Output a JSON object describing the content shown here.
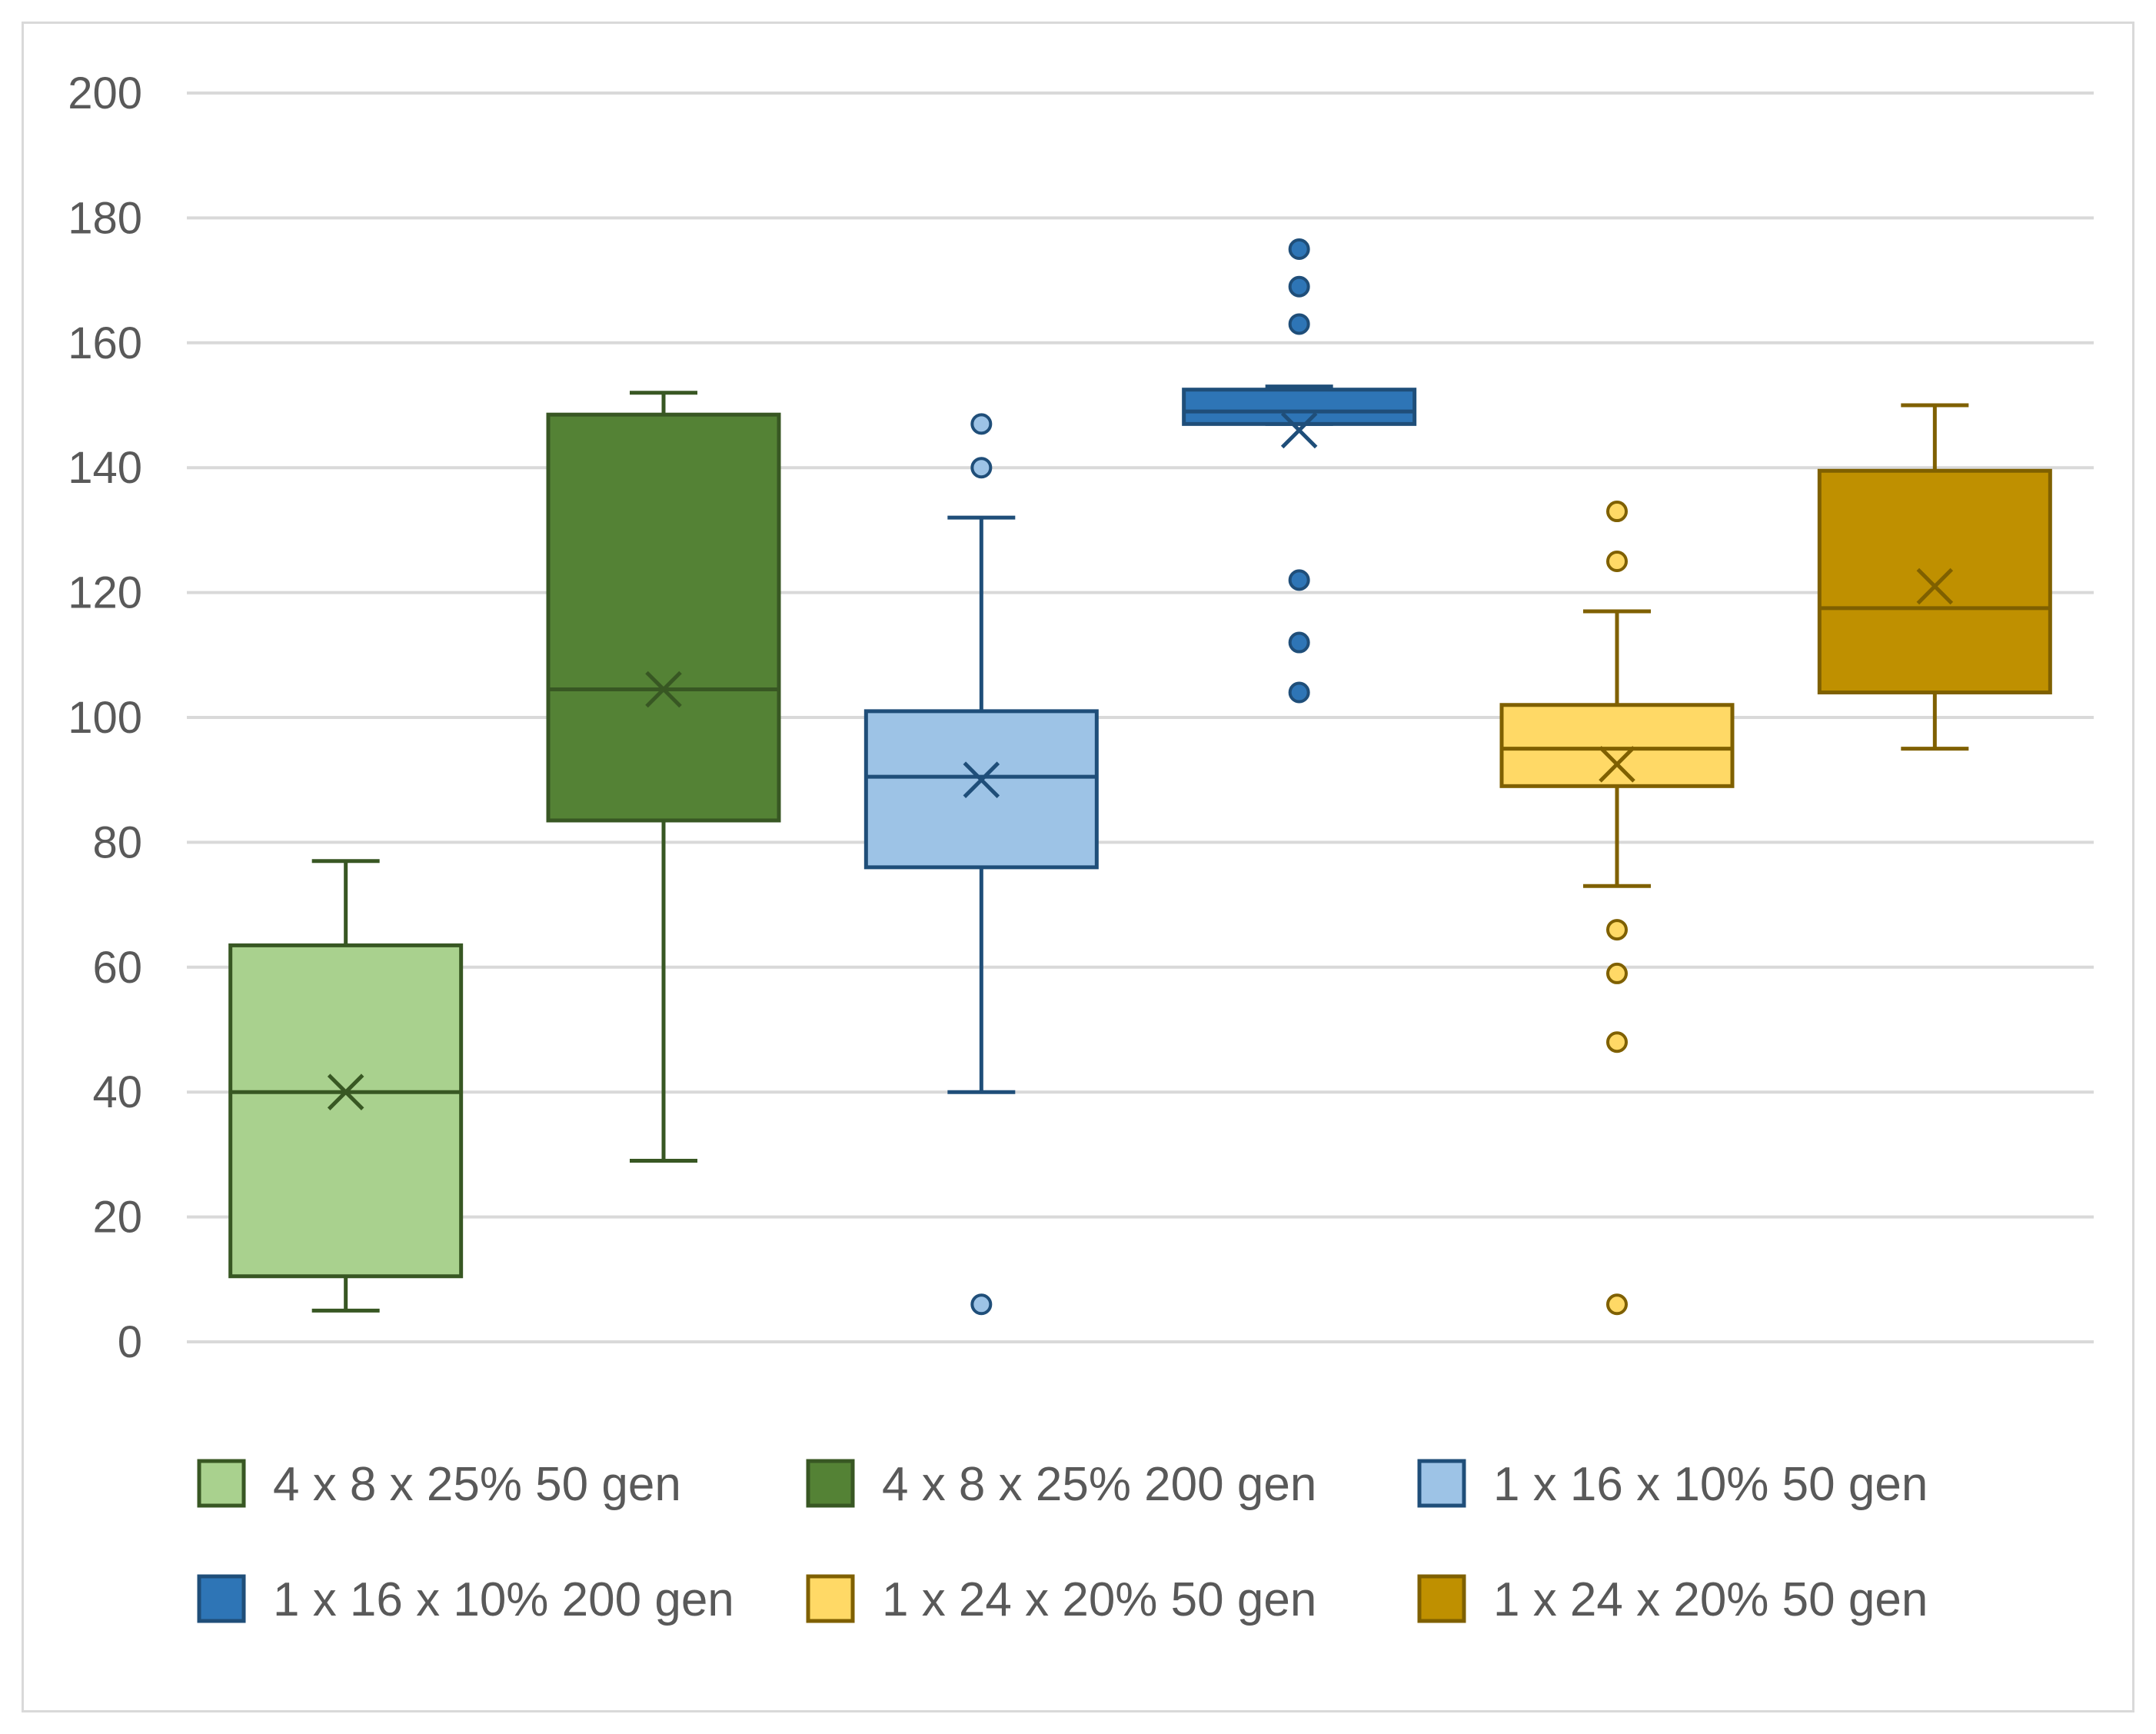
{
  "chart_data": {
    "type": "box",
    "title": "",
    "xlabel": "",
    "ylabel": "",
    "ylim": [
      0,
      200
    ],
    "yticks": [
      0,
      20,
      40,
      60,
      80,
      100,
      120,
      140,
      160,
      180,
      200
    ],
    "yticks_labels": [
      "0",
      "20",
      "40",
      "60",
      "80",
      "100",
      "120",
      "140",
      "160",
      "180",
      "200"
    ],
    "grid": true,
    "legend_position": "bottom",
    "series": [
      {
        "name": "4 x 8 x 25% 50 gen",
        "fill": "#a9d18e",
        "stroke": "#385723",
        "min": 5,
        "q1": 10.5,
        "median": 40,
        "q3": 63.5,
        "max": 77,
        "mean": 40,
        "outliers": []
      },
      {
        "name": "4 x 8 x 25% 200 gen",
        "fill": "#548235",
        "stroke": "#385723",
        "min": 29,
        "q1": 83.5,
        "median": 104.5,
        "q3": 148.5,
        "max": 152,
        "mean": 104.5,
        "outliers": []
      },
      {
        "name": "1 x 16 x 10% 50 gen",
        "fill": "#9dc3e6",
        "stroke": "#1f4e79",
        "min": 40,
        "q1": 76,
        "median": 90.5,
        "q3": 101,
        "max": 132,
        "mean": 90,
        "outliers": [
          6,
          140,
          147
        ]
      },
      {
        "name": "1 x 16 x 10% 200 gen",
        "fill": "#2e75b6",
        "stroke": "#1f4e79",
        "min": 147,
        "q1": 147,
        "median": 149,
        "q3": 152.5,
        "max": 153,
        "mean": 146,
        "outliers": [
          104,
          112,
          122,
          163,
          169,
          175
        ]
      },
      {
        "name": "1 x 24 x 20% 50 gen",
        "fill": "#ffd966",
        "stroke": "#7f6000",
        "min": 73,
        "q1": 89,
        "median": 95,
        "q3": 102,
        "max": 117,
        "mean": 92.5,
        "outliers": [
          6,
          48,
          59,
          66,
          125,
          133
        ]
      },
      {
        "name": "1 x 24 x 20% 50 gen",
        "fill": "#bf9000",
        "stroke": "#7f6000",
        "min": 95,
        "q1": 104,
        "median": 117.5,
        "q3": 139.5,
        "max": 150,
        "mean": 121,
        "outliers": []
      }
    ]
  }
}
